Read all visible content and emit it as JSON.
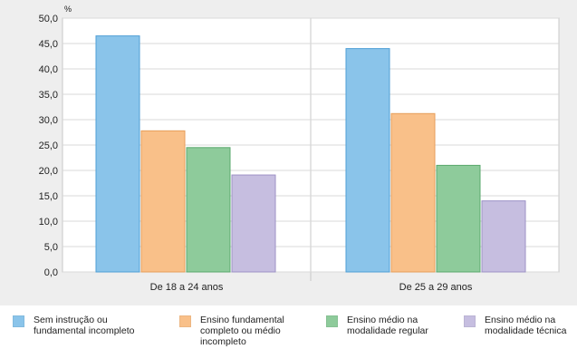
{
  "chart_data": {
    "type": "bar",
    "unit_label": "%",
    "categories": [
      "De 18 a 24 anos",
      "De 25 a 29 anos"
    ],
    "series": [
      {
        "name": "Sem instrução ou\nfundamental incompleto",
        "values": [
          46.5,
          44.0
        ],
        "color": "#8ac4ea",
        "stroke": "#4f9fd6"
      },
      {
        "name": "Ensino fundamental\ncompleto ou médio\nincompleto",
        "values": [
          27.8,
          31.2
        ],
        "color": "#f9c089",
        "stroke": "#e79e5a"
      },
      {
        "name": "Ensino médio na\nmodalidade regular",
        "values": [
          24.5,
          21.0
        ],
        "color": "#8ecb9b",
        "stroke": "#5aa86c"
      },
      {
        "name": "Ensino médio na\nmodalidade técnica",
        "values": [
          19.1,
          14.0
        ],
        "color": "#c6bee0",
        "stroke": "#9d92c6"
      }
    ],
    "ylim": [
      0,
      50
    ],
    "yticks": [
      "0,0",
      "5,0",
      "10,0",
      "15,0",
      "20,0",
      "25,0",
      "30,0",
      "35,0",
      "40,0",
      "45,0",
      "50,0"
    ],
    "grid": true,
    "legend_position": "bottom"
  }
}
